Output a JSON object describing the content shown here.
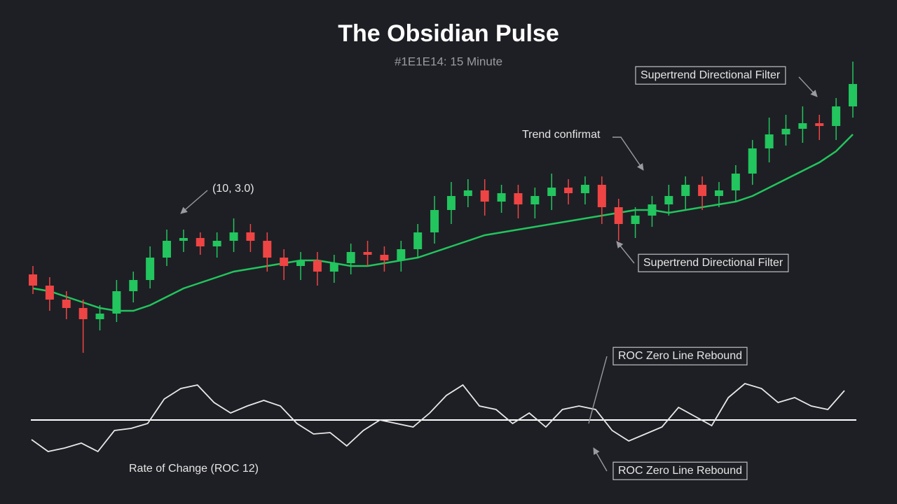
{
  "title": "The Obsidian Pulse",
  "subtitle": "#1E1E14: 15 Minute",
  "chart_data": [
    {
      "type": "candlestick",
      "open": [
        32,
        28,
        23,
        20,
        16,
        18,
        26,
        30,
        38,
        44,
        45,
        42,
        44,
        47,
        44,
        38,
        35,
        37,
        33,
        36,
        40,
        39,
        37,
        41,
        47,
        55,
        60,
        62,
        58,
        61,
        57,
        60,
        63,
        61,
        64,
        56,
        50,
        53,
        57,
        60,
        64,
        60,
        62,
        68,
        77,
        82,
        84,
        86,
        85,
        92
      ],
      "high": [
        35,
        31,
        26,
        23,
        21,
        30,
        33,
        42,
        48,
        48,
        47,
        47,
        52,
        50,
        47,
        41,
        40,
        40,
        39,
        43,
        44,
        42,
        44,
        50,
        60,
        65,
        66,
        66,
        64,
        64,
        63,
        68,
        66,
        67,
        67,
        59,
        56,
        60,
        64,
        67,
        67,
        65,
        71,
        80,
        88,
        89,
        92,
        89,
        95,
        108
      ],
      "low": [
        25,
        19,
        16,
        4,
        12,
        15,
        22,
        27,
        35,
        40,
        39,
        38,
        40,
        40,
        33,
        30,
        30,
        28,
        29,
        32,
        35,
        33,
        33,
        38,
        43,
        50,
        56,
        53,
        54,
        52,
        52,
        55,
        57,
        57,
        50,
        44,
        45,
        49,
        53,
        55,
        55,
        56,
        58,
        64,
        72,
        78,
        79,
        80,
        80,
        88
      ],
      "close": [
        28,
        23,
        20,
        16,
        18,
        26,
        30,
        38,
        44,
        45,
        42,
        44,
        47,
        44,
        38,
        35,
        37,
        33,
        36,
        40,
        39,
        37,
        41,
        47,
        55,
        60,
        62,
        58,
        61,
        57,
        60,
        63,
        61,
        64,
        56,
        50,
        53,
        57,
        60,
        64,
        60,
        62,
        68,
        77,
        82,
        84,
        86,
        85,
        92,
        100
      ],
      "up_color": "#22c55e",
      "down_color": "#ef4444",
      "overlay": {
        "color": "#22c55e",
        "values": [
          27,
          26,
          24,
          22,
          20,
          19,
          19,
          21,
          24,
          27,
          29,
          31,
          33,
          34,
          35,
          36,
          37,
          37,
          36,
          35,
          35,
          36,
          37,
          38,
          40,
          42,
          44,
          46,
          47,
          48,
          49,
          50,
          51,
          52,
          53,
          54,
          55,
          55,
          54,
          55,
          56,
          57,
          58,
          60,
          63,
          66,
          69,
          72,
          76,
          82
        ]
      },
      "ylim": [
        0,
        110
      ],
      "annotations": [
        "(10, 3.0)",
        "Trend confirmat",
        "Supertrend Directional Filter",
        "Supertrend Directional Filter"
      ]
    },
    {
      "type": "line",
      "color": "#e8e8e8",
      "values": [
        -2.8,
        -4.5,
        -4,
        -3.3,
        -4.5,
        -1.5,
        -1.2,
        -0.5,
        3,
        4.5,
        5,
        2.5,
        1,
        2,
        2.8,
        2,
        -0.5,
        -2,
        -1.8,
        -3.7,
        -1.5,
        0,
        -0.5,
        -1,
        1,
        3.5,
        5,
        2,
        1.5,
        -0.5,
        1,
        -1,
        1.5,
        2,
        1.5,
        -1.5,
        -3,
        -2,
        -1,
        1.8,
        0.5,
        -0.8,
        3.2,
        5.2,
        4.5,
        2.5,
        3.2,
        2,
        1.5,
        4.2
      ],
      "ylim": [
        -6,
        6
      ],
      "hline": 0,
      "annotations": [
        "ROC Zero Line Rebound",
        "ROC Zero Line Rebound",
        "Rate of Change (ROC 12)"
      ]
    }
  ]
}
